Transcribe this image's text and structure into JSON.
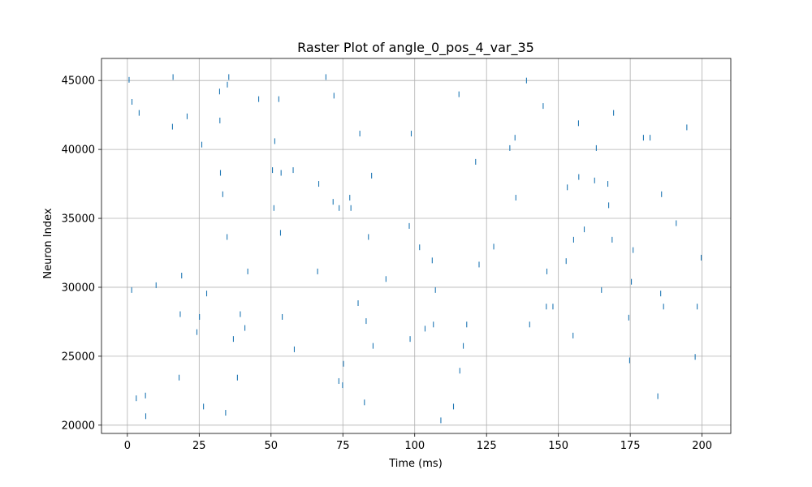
{
  "chart_data": {
    "type": "scatter",
    "marker": "vertical-line",
    "title": "Raster Plot of angle_0_pos_4_var_35",
    "xlabel": "Time (ms)",
    "ylabel": "Neuron Index",
    "xlim": [
      -9,
      210
    ],
    "ylim": [
      19400,
      46600
    ],
    "xticks": [
      0,
      25,
      50,
      75,
      100,
      125,
      150,
      175,
      200
    ],
    "yticks": [
      20000,
      25000,
      30000,
      35000,
      40000,
      45000
    ],
    "grid": true,
    "color": "#1f77b4",
    "x": [
      0.6,
      1.5,
      1.6,
      3.1,
      4.1,
      6.3,
      6.4,
      10.0,
      15.7,
      15.9,
      18.0,
      18.4,
      18.9,
      20.8,
      24.2,
      25.1,
      25.9,
      26.5,
      27.6,
      32.1,
      32.2,
      32.4,
      33.2,
      34.2,
      34.7,
      34.8,
      35.3,
      36.9,
      38.3,
      39.3,
      40.9,
      41.9,
      45.7,
      50.5,
      51.0,
      51.3,
      52.7,
      53.3,
      53.5,
      53.9,
      57.7,
      58.1,
      66.2,
      66.6,
      69.1,
      71.6,
      71.9,
      73.6,
      73.7,
      74.9,
      75.2,
      77.4,
      77.8,
      80.3,
      80.9,
      82.5,
      83.1,
      83.9,
      85.0,
      85.5,
      90.0,
      98.1,
      98.4,
      98.8,
      101.7,
      103.6,
      106.1,
      106.5,
      107.2,
      109.1,
      113.5,
      115.4,
      115.7,
      116.9,
      118.1,
      121.2,
      122.4,
      127.5,
      133.1,
      134.9,
      135.2,
      138.9,
      140.0,
      144.7,
      145.8,
      146.0,
      148.1,
      152.7,
      153.1,
      155.1,
      155.3,
      157.0,
      157.1,
      159.0,
      162.6,
      163.2,
      165.0,
      167.2,
      167.5,
      168.7,
      169.2,
      174.5,
      174.8,
      175.4,
      176.0,
      179.6,
      181.9,
      184.6,
      185.6,
      185.9,
      186.6,
      191.0,
      194.7,
      197.6,
      198.3,
      199.7
    ],
    "y": [
      45050,
      29800,
      43450,
      21950,
      42650,
      22150,
      20650,
      30150,
      41650,
      45250,
      23450,
      28050,
      30850,
      42400,
      26750,
      27850,
      40350,
      21350,
      29550,
      44200,
      42100,
      38300,
      36750,
      20900,
      33650,
      44700,
      45250,
      26250,
      23450,
      28050,
      27050,
      31150,
      43650,
      38500,
      35750,
      40600,
      43650,
      33950,
      38300,
      27850,
      38500,
      25500,
      31150,
      37500,
      45250,
      36200,
      43900,
      23200,
      35750,
      22900,
      24450,
      36500,
      35750,
      28850,
      41150,
      21650,
      27550,
      33650,
      38100,
      25750,
      30600,
      34450,
      26250,
      41150,
      32900,
      27000,
      31950,
      27300,
      29800,
      20350,
      21350,
      44000,
      23950,
      25750,
      27300,
      39100,
      31650,
      32950,
      40100,
      40850,
      36500,
      45000,
      27300,
      43150,
      28600,
      31150,
      28600,
      31900,
      37250,
      26500,
      33450,
      41900,
      38000,
      34200,
      37750,
      40100,
      29800,
      37500,
      35950,
      33450,
      42650,
      27800,
      24700,
      30400,
      32700,
      40850,
      40850,
      22100,
      29550,
      36750,
      28600,
      34650,
      41600,
      24950,
      28600,
      32150
    ]
  }
}
